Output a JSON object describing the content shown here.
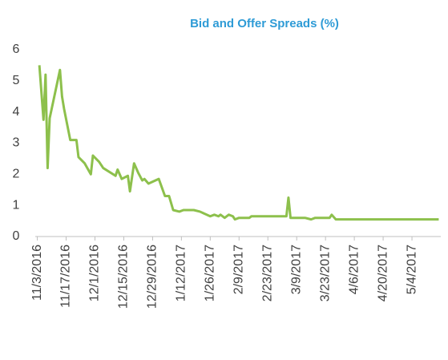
{
  "chart_data": {
    "type": "line",
    "title": "Bid and Offer Spreads (%)",
    "x": [
      "11/4/2016",
      "11/6/2016",
      "11/7/2016",
      "11/8/2016",
      "11/9/2016",
      "11/14/2016",
      "11/15/2016",
      "11/16/2016",
      "11/19/2016",
      "11/22/2016",
      "11/23/2016",
      "11/26/2016",
      "11/29/2016",
      "11/30/2016",
      "12/3/2016",
      "12/5/2016",
      "12/11/2016",
      "12/12/2016",
      "12/14/2016",
      "12/17/2016",
      "12/18/2016",
      "12/20/2016",
      "12/22/2016",
      "12/24/2016",
      "12/25/2016",
      "12/27/2016",
      "1/1/2017",
      "1/4/2017",
      "1/6/2017",
      "1/8/2017",
      "1/11/2017",
      "1/13/2017",
      "1/18/2017",
      "1/21/2017",
      "1/26/2017",
      "1/28/2017",
      "1/30/2017",
      "1/31/2017",
      "2/2/2017",
      "2/4/2017",
      "2/6/2017",
      "2/7/2017",
      "2/9/2017",
      "2/14/2017",
      "2/15/2017",
      "3/4/2017",
      "3/5/2017",
      "3/6/2017",
      "3/13/2017",
      "3/16/2017",
      "3/18/2017",
      "3/25/2017",
      "3/26/2017",
      "3/28/2017",
      "5/17/2017"
    ],
    "series": [
      {
        "color": "#8dc04c",
        "values": [
          5.5,
          3.75,
          5.2,
          2.2,
          3.8,
          5.35,
          4.5,
          4.1,
          3.1,
          3.1,
          2.55,
          2.35,
          2.0,
          2.6,
          2.4,
          2.2,
          1.95,
          2.15,
          1.85,
          1.95,
          1.45,
          2.35,
          2.05,
          1.8,
          1.85,
          1.7,
          1.85,
          1.3,
          1.3,
          0.85,
          0.8,
          0.85,
          0.85,
          0.8,
          0.65,
          0.7,
          0.65,
          0.7,
          0.6,
          0.7,
          0.65,
          0.55,
          0.6,
          0.6,
          0.65,
          0.65,
          1.25,
          0.6,
          0.6,
          0.55,
          0.6,
          0.6,
          0.7,
          0.55,
          0.55
        ]
      }
    ],
    "xlim": [
      "11/2/2016",
      "5/18/2017"
    ],
    "xticks": [
      "11/3/2016",
      "11/17/2016",
      "12/1/2016",
      "12/15/2016",
      "12/29/2016",
      "1/12/2017",
      "1/26/2017",
      "2/9/2017",
      "2/23/2017",
      "3/9/2017",
      "3/23/2017",
      "4/6/2017",
      "4/20/2017",
      "5/4/2017"
    ],
    "ylim": [
      0,
      6
    ],
    "yticks": [
      0,
      1,
      2,
      3,
      4,
      5,
      6
    ],
    "grid": false
  }
}
